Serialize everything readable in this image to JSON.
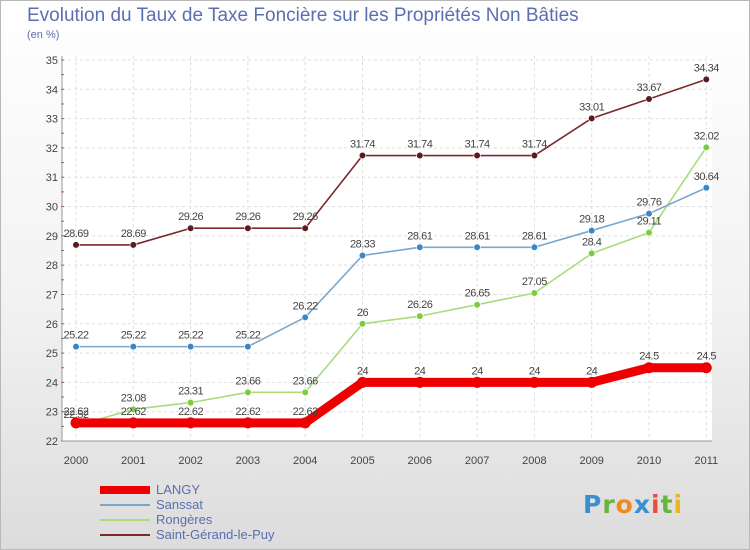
{
  "title": "Evolution du Taux de Taxe Foncière sur les Propriétés Non Bâties",
  "unit_label": "(en %)",
  "logo": {
    "text": "Proxiti",
    "letters": [
      {
        "ch": "P",
        "color": "#3a8fd0"
      },
      {
        "ch": "r",
        "color": "#6ab33e"
      },
      {
        "ch": "o",
        "color": "#f08a1c"
      },
      {
        "ch": "x",
        "color": "#3a8fd0"
      },
      {
        "ch": "i",
        "color": "#e94e3d"
      },
      {
        "ch": "t",
        "color": "#6ab33e"
      },
      {
        "ch": "i",
        "color": "#f0b21c"
      }
    ]
  },
  "chart_data": {
    "type": "line",
    "title": "Evolution du Taux de Taxe Foncière sur les Propriétés Non Bâties",
    "ylabel": "(en %)",
    "xlabel": "",
    "x": [
      "2000",
      "2001",
      "2002",
      "2003",
      "2004",
      "2005",
      "2006",
      "2007",
      "2008",
      "2009",
      "2010",
      "2011"
    ],
    "ylim": [
      22,
      35
    ],
    "yticks": [
      22,
      23,
      24,
      25,
      26,
      27,
      28,
      29,
      30,
      31,
      32,
      33,
      34,
      35
    ],
    "grid": true,
    "legend_position": "bottom-left",
    "series": [
      {
        "name": "Saint-Gérand-le-Puy",
        "color": "#7a2a2e",
        "dot": "#5a1a1e",
        "values": [
          28.69,
          28.69,
          29.26,
          29.26,
          29.26,
          31.74,
          31.74,
          31.74,
          31.74,
          33.01,
          33.67,
          34.34
        ],
        "labels": [
          "28.69",
          "28.69",
          "29.26",
          "29.26",
          "29.26",
          "31.74",
          "31.74",
          "31.74",
          "31.74",
          "33.01",
          "33.67",
          "34.34"
        ]
      },
      {
        "name": "Rongères",
        "color": "#a8dc7c",
        "dot": "#7ccc3c",
        "values": [
          22.52,
          23.08,
          23.31,
          23.66,
          23.66,
          26,
          26.26,
          26.65,
          27.05,
          28.4,
          29.11,
          32.02
        ],
        "labels": [
          "22.52",
          "23.08",
          "23.31",
          "23.66",
          "23.66",
          "26",
          "26.26",
          "26.65",
          "27.05",
          "28.4",
          "29.11",
          "32.02"
        ]
      },
      {
        "name": "Sanssat",
        "color": "#7aa6cc",
        "dot": "#3a86c6",
        "values": [
          25.22,
          25.22,
          25.22,
          25.22,
          26.22,
          28.33,
          28.61,
          28.61,
          28.61,
          29.18,
          29.76,
          30.64
        ],
        "labels": [
          "25.22",
          "25.22",
          "25.22",
          "25.22",
          "26.22",
          "28.33",
          "28.61",
          "28.61",
          "28.61",
          "29.18",
          "29.76",
          "30.64"
        ]
      },
      {
        "name": "LANGY",
        "color": "#ee0000",
        "dot": "#ee0000",
        "values": [
          22.62,
          22.62,
          22.62,
          22.62,
          22.62,
          24,
          24,
          24,
          24,
          24,
          24.5,
          24.5
        ],
        "labels": [
          "22.62",
          "22.62",
          "22.62",
          "22.62",
          "22.62",
          "24",
          "24",
          "24",
          "24",
          "24",
          "24.5",
          "24.5"
        ]
      }
    ],
    "legend_order": [
      "LANGY",
      "Sanssat",
      "Rongères",
      "Saint-Gérand-le-Puy"
    ]
  }
}
